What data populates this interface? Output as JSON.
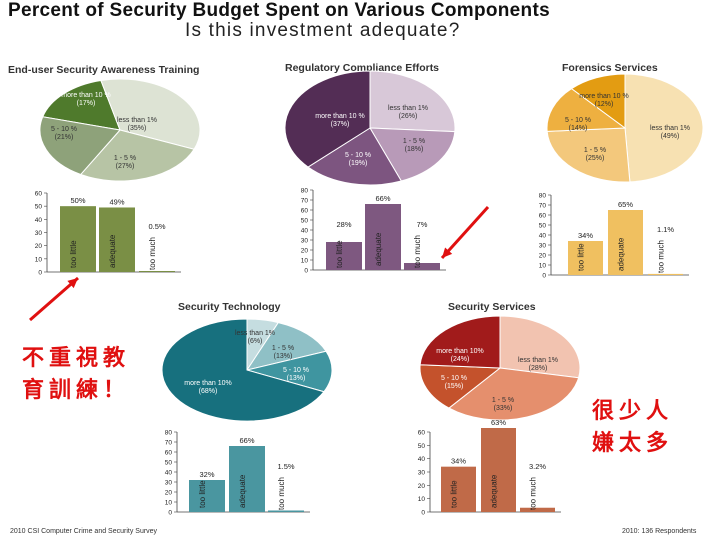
{
  "header": {
    "title": "Percent of Security Budget Spent on Various Components",
    "subtitle": "Is this investment adequate?"
  },
  "footer": {
    "left": "2010 CSI Computer Crime and Security Survey",
    "right": "2010: 136 Respondents"
  },
  "annotations": {
    "left_note_line1": "不重視教",
    "left_note_line2": "育訓練！",
    "right_note_line1": "很少人",
    "right_note_line2": "嫌太多",
    "arrow_color": "#e01010"
  },
  "chart_data": [
    {
      "type": "pie",
      "title": "End-user Security Awareness Training",
      "slices": [
        {
          "label": "more than 10 %",
          "pct_label": "(17%)",
          "value": 17,
          "color": "#4f7a2c"
        },
        {
          "label": "less than 1%",
          "pct_label": "(35%)",
          "value": 35,
          "color": "#dde3d4"
        },
        {
          "label": "1 - 5 %",
          "pct_label": "(27%)",
          "value": 27,
          "color": "#b7c4a5"
        },
        {
          "label": "5 - 10 %",
          "pct_label": "(21%)",
          "value": 21,
          "color": "#8ea27a"
        }
      ]
    },
    {
      "type": "bar",
      "categories": [
        "too little",
        "adequate",
        "too much"
      ],
      "values": [
        50,
        49,
        0.5
      ],
      "data_labels": [
        "50%",
        "49%",
        "0.5%"
      ],
      "ylim": [
        0,
        60
      ],
      "yticks": [
        "0",
        "10",
        "20",
        "30",
        "40",
        "50",
        "60"
      ],
      "color": "#7a8f45"
    },
    {
      "type": "pie",
      "title": "Regulatory Compliance Efforts",
      "slices": [
        {
          "label": "less than 1%",
          "pct_label": "(26%)",
          "value": 26,
          "color": "#d8c8d8"
        },
        {
          "label": "1 - 5 %",
          "pct_label": "(18%)",
          "value": 18,
          "color": "#b89ab8"
        },
        {
          "label": "5 - 10 %",
          "pct_label": "(19%)",
          "value": 19,
          "color": "#7d5580"
        },
        {
          "label": "more than 10 %",
          "pct_label": "(37%)",
          "value": 37,
          "color": "#532d55"
        }
      ]
    },
    {
      "type": "bar",
      "categories": [
        "too little",
        "adequate",
        "too much"
      ],
      "values": [
        28,
        66,
        7
      ],
      "data_labels": [
        "28%",
        "66%",
        "7%"
      ],
      "ylim": [
        0,
        80
      ],
      "yticks": [
        "0",
        "10",
        "20",
        "30",
        "40",
        "50",
        "60",
        "70",
        "80"
      ],
      "color": "#7e5880"
    },
    {
      "type": "pie",
      "title": "Forensics Services",
      "slices": [
        {
          "label": "less than 1%",
          "pct_label": "(49%)",
          "value": 49,
          "color": "#f7e1b2"
        },
        {
          "label": "1 - 5 %",
          "pct_label": "(25%)",
          "value": 25,
          "color": "#f3c87c"
        },
        {
          "label": "5 - 10 %",
          "pct_label": "(14%)",
          "value": 14,
          "color": "#eeb040"
        },
        {
          "label": "more than 10 %",
          "pct_label": "(12%)",
          "value": 12,
          "color": "#e39c12"
        }
      ]
    },
    {
      "type": "bar",
      "categories": [
        "too little",
        "adequate",
        "too much"
      ],
      "values": [
        34,
        65,
        1.1
      ],
      "data_labels": [
        "34%",
        "65%",
        "1.1%"
      ],
      "ylim": [
        0,
        80
      ],
      "yticks": [
        "0",
        "10",
        "20",
        "30",
        "40",
        "50",
        "60",
        "70",
        "80"
      ],
      "color": "#f0c060"
    },
    {
      "type": "pie",
      "title": "Security Technology",
      "slices": [
        {
          "label": "less than 1%",
          "pct_label": "(6%)",
          "value": 6,
          "color": "#c5dde0"
        },
        {
          "label": "1 - 5 %",
          "pct_label": "(13%)",
          "value": 13,
          "color": "#8fc0c6"
        },
        {
          "label": "5 - 10 %",
          "pct_label": "(13%)",
          "value": 13,
          "color": "#3f95a0"
        },
        {
          "label": "more than 10%",
          "pct_label": "(68%)",
          "value": 68,
          "color": "#17707e"
        }
      ]
    },
    {
      "type": "bar",
      "categories": [
        "too little",
        "adequate",
        "too much"
      ],
      "values": [
        32,
        66,
        1.5
      ],
      "data_labels": [
        "32%",
        "66%",
        "1.5%"
      ],
      "ylim": [
        0,
        80
      ],
      "yticks": [
        "0",
        "10",
        "20",
        "30",
        "40",
        "50",
        "60",
        "70",
        "80"
      ],
      "color": "#4a96a0"
    },
    {
      "type": "pie",
      "title": "Security Services",
      "slices": [
        {
          "label": "less than 1%",
          "pct_label": "(28%)",
          "value": 28,
          "color": "#f2c3b0"
        },
        {
          "label": "1 - 5 %",
          "pct_label": "(33%)",
          "value": 33,
          "color": "#e58f6d"
        },
        {
          "label": "5 - 10 %",
          "pct_label": "(15%)",
          "value": 15,
          "color": "#c4522c"
        },
        {
          "label": "more than 10%",
          "pct_label": "(24%)",
          "value": 24,
          "color": "#a11b1b"
        }
      ]
    },
    {
      "type": "bar",
      "categories": [
        "too little",
        "adequate",
        "too much"
      ],
      "values": [
        34,
        63,
        3.2
      ],
      "data_labels": [
        "34%",
        "63%",
        "3.2%"
      ],
      "ylim": [
        0,
        60
      ],
      "yticks": [
        "0",
        "10",
        "20",
        "30",
        "40",
        "50",
        "60"
      ],
      "color": "#c06a48"
    }
  ]
}
